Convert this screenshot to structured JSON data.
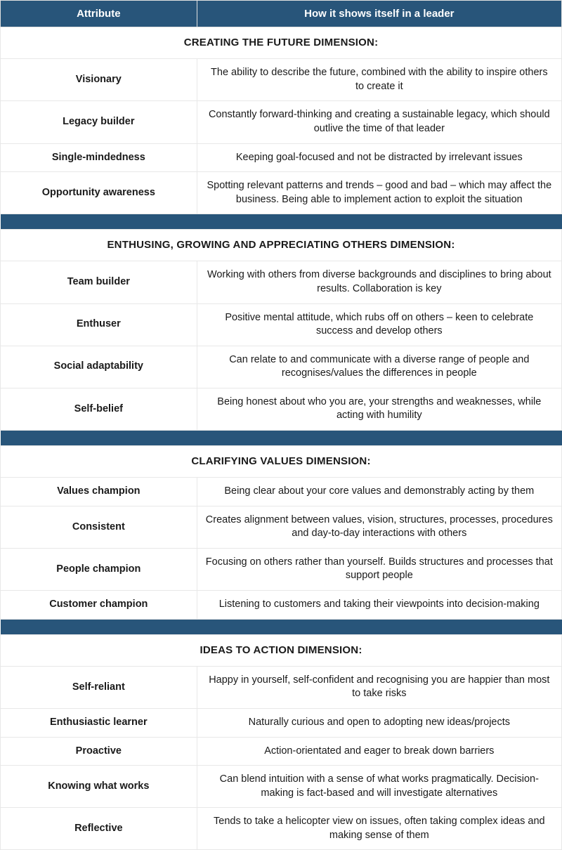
{
  "header": {
    "col1": "Attribute",
    "col2": "How it shows itself in a leader"
  },
  "colors": {
    "header_bg": "#28557a",
    "header_text": "#ffffff",
    "border": "#e8e8e8",
    "text": "#1a1a1a"
  },
  "sections": [
    {
      "title": "CREATING THE FUTURE DIMENSION:",
      "rows": [
        {
          "attr": "Visionary",
          "desc": "The ability to describe the future, combined with the ability to inspire others to create it"
        },
        {
          "attr": "Legacy builder",
          "desc": "Constantly forward-thinking and creating a sustainable legacy, which should outlive the time of that leader"
        },
        {
          "attr": "Single-mindedness",
          "desc": "Keeping goal-focused and not be distracted by irrelevant issues"
        },
        {
          "attr": "Opportunity awareness",
          "desc": "Spotting relevant patterns and trends – good and bad – which may affect the business. Being able to implement action to exploit the situation"
        }
      ]
    },
    {
      "title": "ENTHUSING, GROWING AND APPRECIATING OTHERS DIMENSION:",
      "rows": [
        {
          "attr": "Team builder",
          "desc": "Working with others from diverse backgrounds and disciplines to bring about results. Collaboration is key"
        },
        {
          "attr": "Enthuser",
          "desc": "Positive mental attitude, which rubs off on others – keen to celebrate success and develop others"
        },
        {
          "attr": "Social adaptability",
          "desc": "Can relate to and communicate with a diverse range of people and recognises/values the differences in people"
        },
        {
          "attr": "Self-belief",
          "desc": "Being honest about who you are, your strengths and weaknesses, while acting with humility"
        }
      ]
    },
    {
      "title": "CLARIFYING VALUES DIMENSION:",
      "rows": [
        {
          "attr": "Values champion",
          "desc": "Being clear about your core values and demonstrably acting by them"
        },
        {
          "attr": "Consistent",
          "desc": "Creates alignment between values, vision, structures, processes, procedures and day-to-day interactions with others"
        },
        {
          "attr": "People champion",
          "desc": "Focusing on others rather than yourself. Builds structures and processes that support people"
        },
        {
          "attr": "Customer champion",
          "desc": "Listening to customers and taking their viewpoints into decision-making"
        }
      ]
    },
    {
      "title": "IDEAS TO ACTION DIMENSION:",
      "rows": [
        {
          "attr": "Self-reliant",
          "desc": "Happy in yourself, self-confident and recognising you are happier than most to take risks"
        },
        {
          "attr": "Enthusiastic learner",
          "desc": "Naturally curious and open to adopting new ideas/projects"
        },
        {
          "attr": "Proactive",
          "desc": "Action-orientated and eager to break down barriers"
        },
        {
          "attr": "Knowing what works",
          "desc": "Can blend intuition with a sense of what works pragmatically. Decision-making is fact-based and will investigate alternatives"
        },
        {
          "attr": "Reflective",
          "desc": "Tends to take a helicopter view on issues, often taking complex ideas and making sense of them"
        }
      ]
    }
  ]
}
